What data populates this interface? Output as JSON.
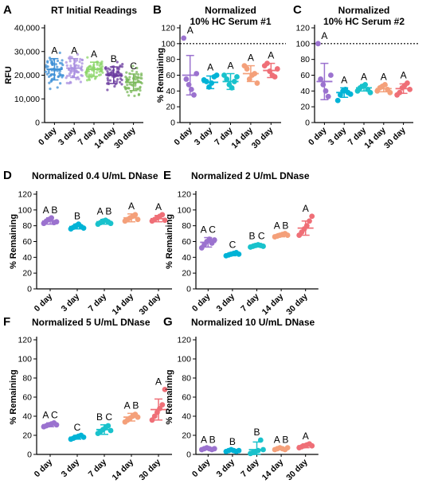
{
  "figure": {
    "groups": [
      "0 day",
      "3 day",
      "7 day",
      "14 day",
      "30 day"
    ],
    "colors": [
      "#9b72cf",
      "#00b3d6",
      "#19c2cc",
      "#f4a07a",
      "#ef6f77"
    ],
    "raw_colors": [
      "#3d8fd6",
      "#a98fe0",
      "#8cd66a",
      "#6a3a9e",
      "#7ab85a"
    ]
  },
  "chart_data": [
    {
      "panel": "A",
      "type": "scatter",
      "title": "RT Initial Readings",
      "ylabel": "RFU",
      "ylim": [
        0,
        40000
      ],
      "yticks": [
        0,
        10000,
        20000,
        30000,
        40000
      ],
      "ytick_labels": [
        "0",
        "10,000",
        "20,000",
        "30,000",
        "40,000"
      ],
      "categories": [
        "0 day",
        "3 day",
        "7 day",
        "14 day",
        "30 day"
      ],
      "mean": [
        22500,
        23000,
        22500,
        20000,
        17000
      ],
      "sd": [
        4500,
        4000,
        3000,
        3500,
        3500
      ],
      "letters": [
        "A",
        "A",
        "A",
        "B",
        "C"
      ],
      "reference_line": null,
      "points_per_group": 60
    },
    {
      "panel": "B",
      "type": "scatter",
      "title": "Normalized\n10% HC Serum #1",
      "ylabel": "% Remaining",
      "ylim": [
        0,
        120
      ],
      "yticks": [
        0,
        20,
        40,
        60,
        80,
        100,
        120
      ],
      "categories": [
        "0 day",
        "3 day",
        "7 day",
        "14 day",
        "30 day"
      ],
      "mean": [
        60,
        51,
        52,
        62,
        66
      ],
      "sd": [
        25,
        8,
        10,
        10,
        9
      ],
      "letters": [
        "A",
        "A",
        "A",
        "A",
        "A"
      ],
      "reference_line": 100,
      "points": [
        [
          107,
          55,
          48,
          42,
          35,
          62
        ],
        [
          54,
          52,
          45,
          50,
          58,
          60
        ],
        [
          60,
          55,
          48,
          44,
          52,
          58
        ],
        [
          72,
          68,
          55,
          60,
          62,
          50
        ],
        [
          72,
          75,
          65,
          60,
          58,
          68
        ]
      ]
    },
    {
      "panel": "C",
      "type": "scatter",
      "title": "Normalized\n10% HC Serum #2",
      "ylabel": "",
      "ylim": [
        0,
        120
      ],
      "yticks": [
        0,
        20,
        40,
        60,
        80,
        100,
        120
      ],
      "categories": [
        "0 day",
        "3 day",
        "7 day",
        "14 day",
        "30 day"
      ],
      "mean": [
        52,
        38,
        44,
        43,
        43
      ],
      "sd": [
        23,
        6,
        4,
        4,
        6
      ],
      "letters": [
        "A",
        "A",
        "A",
        "A",
        "A"
      ],
      "reference_line": 100,
      "points": [
        [
          100,
          55,
          48,
          40,
          33,
          60
        ],
        [
          28,
          35,
          40,
          42,
          38,
          36
        ],
        [
          40,
          44,
          46,
          48,
          42,
          38
        ],
        [
          40,
          44,
          46,
          48,
          42,
          38
        ],
        [
          35,
          38,
          44,
          47,
          50,
          42
        ]
      ]
    },
    {
      "panel": "D",
      "type": "scatter",
      "title": "Normalized 0.4 U/mL DNase",
      "ylabel": "% Remaining",
      "ylim": [
        0,
        120
      ],
      "yticks": [
        0,
        20,
        40,
        60,
        80,
        100,
        120
      ],
      "categories": [
        "0 day",
        "3 day",
        "7 day",
        "14 day",
        "30 day"
      ],
      "mean": [
        86,
        79,
        85,
        90,
        89
      ],
      "sd": [
        4,
        3,
        3,
        5,
        4
      ],
      "letters": [
        "A B",
        "B",
        "A B",
        "A",
        "A"
      ],
      "reference_line": 0,
      "points": [
        [
          83,
          86,
          88,
          90,
          84,
          85
        ],
        [
          76,
          78,
          80,
          82,
          79,
          77
        ],
        [
          82,
          84,
          86,
          87,
          85,
          83
        ],
        [
          86,
          88,
          90,
          92,
          94,
          88
        ],
        [
          86,
          88,
          90,
          92,
          94,
          87
        ]
      ]
    },
    {
      "panel": "E",
      "type": "scatter",
      "title": "Normalized 2 U/mL DNase",
      "ylabel": "% Remaining",
      "ylim": [
        0,
        120
      ],
      "yticks": [
        0,
        20,
        40,
        60,
        80,
        100,
        120
      ],
      "categories": [
        "0 day",
        "3 day",
        "7 day",
        "14 day",
        "30 day"
      ],
      "mean": [
        59,
        44,
        55,
        68,
        77
      ],
      "sd": [
        6,
        2,
        2,
        2,
        9
      ],
      "letters": [
        "A C",
        "C",
        "B C",
        "A B",
        "A"
      ],
      "reference_line": 0,
      "points": [
        [
          52,
          56,
          60,
          63,
          58,
          62
        ],
        [
          42,
          43,
          44,
          45,
          46,
          44
        ],
        [
          53,
          54,
          55,
          56,
          55,
          54
        ],
        [
          66,
          67,
          68,
          69,
          70,
          68
        ],
        [
          68,
          72,
          76,
          80,
          86,
          92
        ]
      ]
    },
    {
      "panel": "F",
      "type": "scatter",
      "title": "Normalized 5 U/mL DNase",
      "ylabel": "% Remaining",
      "ylim": [
        0,
        120
      ],
      "yticks": [
        0,
        20,
        40,
        60,
        80,
        100,
        120
      ],
      "categories": [
        "0 day",
        "3 day",
        "7 day",
        "14 day",
        "30 day"
      ],
      "mean": [
        31,
        18,
        26,
        39,
        47
      ],
      "sd": [
        2,
        2,
        5,
        4,
        11
      ],
      "letters": [
        "A C",
        "C",
        "B C",
        "A B",
        "A"
      ],
      "reference_line": 0,
      "points": [
        [
          29,
          30,
          31,
          32,
          33,
          31
        ],
        [
          16,
          17,
          18,
          19,
          20,
          18
        ],
        [
          22,
          24,
          26,
          28,
          30,
          25
        ],
        [
          34,
          36,
          38,
          40,
          42,
          39
        ],
        [
          36,
          40,
          44,
          48,
          52,
          68
        ]
      ]
    },
    {
      "panel": "G",
      "type": "scatter",
      "title": "Normalized 10 U/mL DNase",
      "ylabel": "% Remaining",
      "ylim": [
        0,
        120
      ],
      "yticks": [
        0,
        20,
        40,
        60,
        80,
        100,
        120
      ],
      "categories": [
        "0 day",
        "3 day",
        "7 day",
        "14 day",
        "30 day"
      ],
      "mean": [
        6,
        4,
        5,
        6,
        9
      ],
      "sd": [
        1,
        1,
        8,
        1,
        2
      ],
      "letters": [
        "A B",
        "B",
        "B",
        "A B",
        "A"
      ],
      "reference_line": 0,
      "points": [
        [
          5,
          6,
          7,
          6,
          5,
          6
        ],
        [
          3,
          4,
          5,
          4,
          3,
          4
        ],
        [
          1,
          2,
          3,
          4,
          15,
          5
        ],
        [
          5,
          6,
          7,
          6,
          5,
          7
        ],
        [
          7,
          8,
          9,
          10,
          11,
          9
        ]
      ]
    }
  ]
}
